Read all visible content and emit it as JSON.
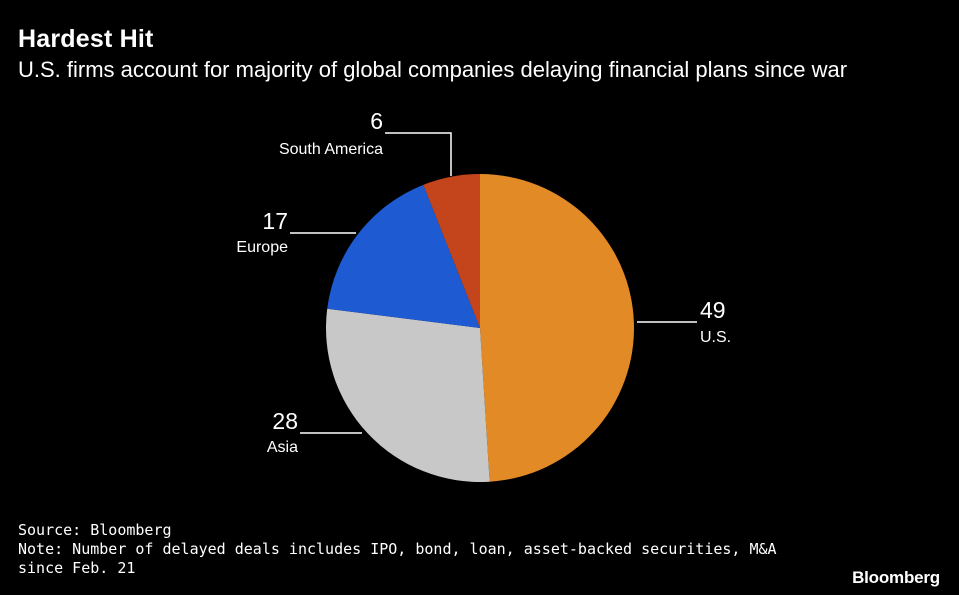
{
  "title": "Hardest Hit",
  "subtitle": "U.S. firms account for majority of global companies delaying financial plans since war",
  "chart_data": {
    "type": "pie",
    "start_angle_deg": 0,
    "direction": "clockwise",
    "slices": [
      {
        "label": "U.S.",
        "value": 49,
        "color": "#e28a26"
      },
      {
        "label": "Asia",
        "value": 28,
        "color": "#c8c8c8"
      },
      {
        "label": "Europe",
        "value": 17,
        "color": "#1e5bd2"
      },
      {
        "label": "South America",
        "value": 6,
        "color": "#c4441c"
      }
    ]
  },
  "footer": {
    "source": "Source: Bloomberg",
    "note": "Note: Number of delayed deals includes IPO, bond, loan, asset-backed securities, M&A since Feb. 21"
  },
  "brand": "Bloomberg"
}
